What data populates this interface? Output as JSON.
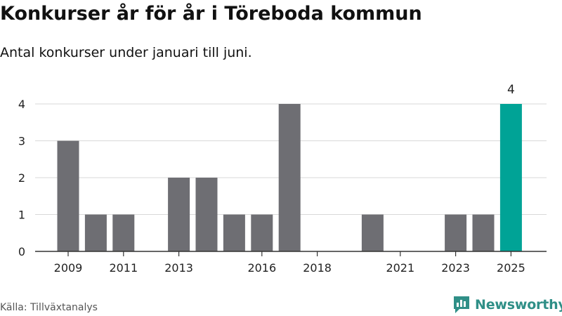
{
  "header": {
    "title": "Konkurser år för år i Töreboda kommun",
    "subtitle": "Antal konkurser under januari till juni."
  },
  "footer": {
    "source": "Källa: Tillväxtanalys",
    "brand": "Newsworthy"
  },
  "colors": {
    "bar": "#6e6e73",
    "highlight": "#00a396",
    "grid": "#d9d9d9",
    "axis": "#333333",
    "brand": "#2f8f87"
  },
  "chart_data": {
    "type": "bar",
    "title": "Konkurser år för år i Töreboda kommun",
    "subtitle": "Antal konkurser under januari till juni.",
    "xlabel": "",
    "ylabel": "",
    "ylim": [
      0,
      4
    ],
    "yticks": [
      0,
      1,
      2,
      3,
      4
    ],
    "xticks": [
      "2009",
      "2011",
      "2013",
      "2016",
      "2018",
      "2021",
      "2023",
      "2025"
    ],
    "categories": [
      "2009",
      "2010",
      "2011",
      "2012",
      "2013",
      "2014",
      "2015",
      "2016",
      "2017",
      "2018",
      "2019",
      "2020",
      "2021",
      "2022",
      "2023",
      "2024",
      "2025"
    ],
    "values": [
      3,
      1,
      1,
      0,
      2,
      2,
      1,
      1,
      4,
      0,
      0,
      1,
      0,
      0,
      1,
      1,
      4
    ],
    "highlight_category": "2025",
    "data_labels": [
      {
        "category": "2025",
        "text": "4"
      }
    ],
    "grid": true,
    "legend": "none"
  }
}
